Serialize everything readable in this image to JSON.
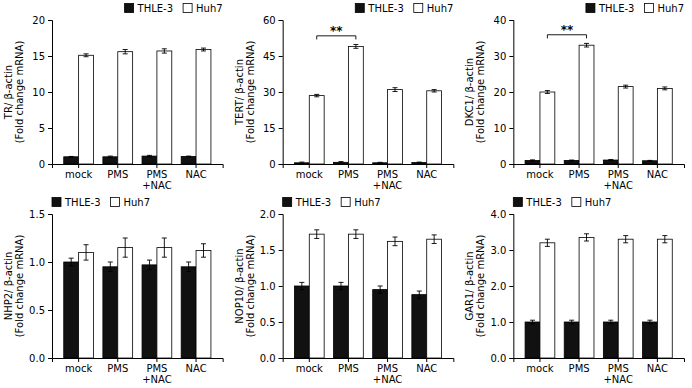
{
  "chart_data": [
    {
      "type": "bar",
      "ylabel": "TR/ β-actin\n(Fold change mRNA)",
      "categories": [
        "mock",
        "PMS",
        "PMS\n+NAC",
        "NAC"
      ],
      "ylim": [
        0,
        20
      ],
      "yticks": [
        0,
        5,
        10,
        15,
        20
      ],
      "grid": false,
      "legend": "upper right",
      "series": [
        {
          "name": "THLE-3",
          "color": "#111111",
          "values": [
            1.0,
            1.0,
            1.1,
            1.05
          ],
          "errors": [
            0.05,
            0.1,
            0.1,
            0.05
          ]
        },
        {
          "name": "Huh7",
          "color": "#ffffff",
          "values": [
            15.1,
            15.6,
            15.7,
            15.9
          ],
          "errors": [
            0.2,
            0.3,
            0.3,
            0.2
          ]
        }
      ]
    },
    {
      "type": "bar",
      "ylabel": "TERT/ β-actin\n(Fold change mRNA)",
      "categories": [
        "mock",
        "PMS",
        "PMS\n+NAC",
        "NAC"
      ],
      "ylim": [
        0,
        60
      ],
      "yticks": [
        0,
        15,
        30,
        45,
        60
      ],
      "grid": false,
      "legend": "upper right",
      "series": [
        {
          "name": "THLE-3",
          "color": "#111111",
          "values": [
            0.5,
            0.7,
            0.5,
            0.6
          ],
          "errors": [
            0.3,
            0.3,
            0.2,
            0.2
          ]
        },
        {
          "name": "Huh7",
          "color": "#ffffff",
          "values": [
            28.5,
            49.0,
            31.0,
            30.5
          ],
          "errors": [
            0.5,
            0.8,
            0.8,
            0.5
          ]
        }
      ],
      "annotations": [
        {
          "text": "**",
          "from": "mock",
          "to": "PMS",
          "series": "Huh7"
        }
      ]
    },
    {
      "type": "bar",
      "ylabel": "DKC1/ β-actin\n(Fold change mRNA)",
      "categories": [
        "mock",
        "PMS",
        "PMS\n+NAC",
        "NAC"
      ],
      "ylim": [
        0,
        40
      ],
      "yticks": [
        0,
        10,
        20,
        30,
        40
      ],
      "grid": false,
      "legend": "upper right",
      "series": [
        {
          "name": "THLE-3",
          "color": "#111111",
          "values": [
            1.0,
            1.0,
            1.1,
            0.9
          ],
          "errors": [
            0.15,
            0.1,
            0.15,
            0.1
          ]
        },
        {
          "name": "Huh7",
          "color": "#ffffff",
          "values": [
            20.0,
            33.0,
            21.5,
            21.0
          ],
          "errors": [
            0.4,
            0.5,
            0.4,
            0.4
          ]
        }
      ],
      "annotations": [
        {
          "text": "**",
          "from": "mock",
          "to": "PMS",
          "series": "Huh7"
        }
      ]
    },
    {
      "type": "bar",
      "ylabel": "NHP2/ β-actin\n(Fold change mRNA)",
      "categories": [
        "mock",
        "PMS",
        "PMS\n+NAC",
        "NAC"
      ],
      "ylim": [
        0,
        1.5
      ],
      "yticks": [
        {
          "value": 0.0,
          "label": "0.0"
        },
        0.5,
        {
          "value": 1.0,
          "label": "1.0"
        },
        1.5
      ],
      "grid": false,
      "legend": "upper left",
      "series": [
        {
          "name": "THLE-3",
          "color": "#111111",
          "values": [
            1.0,
            0.95,
            0.97,
            0.95
          ],
          "errors": [
            0.04,
            0.05,
            0.05,
            0.05
          ]
        },
        {
          "name": "Huh7",
          "color": "#ffffff",
          "values": [
            1.1,
            1.15,
            1.15,
            1.12
          ],
          "errors": [
            0.08,
            0.1,
            0.1,
            0.07
          ]
        }
      ]
    },
    {
      "type": "bar",
      "ylabel": "NOP10/ β-actin\n(Fold change mRNA)",
      "categories": [
        "mock",
        "PMS",
        "PMS\n+NAC",
        "NAC"
      ],
      "ylim": [
        0,
        2.0
      ],
      "yticks": [
        {
          "value": 0.0,
          "label": "0.0"
        },
        0.5,
        {
          "value": 1.0,
          "label": "1.0"
        },
        1.5,
        {
          "value": 2.0,
          "label": "2.0"
        }
      ],
      "grid": false,
      "legend": "upper left",
      "series": [
        {
          "name": "THLE-3",
          "color": "#111111",
          "values": [
            1.0,
            1.0,
            0.95,
            0.88
          ],
          "errors": [
            0.05,
            0.05,
            0.05,
            0.05
          ]
        },
        {
          "name": "Huh7",
          "color": "#ffffff",
          "values": [
            1.72,
            1.72,
            1.62,
            1.65
          ],
          "errors": [
            0.06,
            0.06,
            0.06,
            0.06
          ]
        }
      ]
    },
    {
      "type": "bar",
      "ylabel": "GAR1/ β-actin\n(Fold change mRNA)",
      "categories": [
        "mock",
        "PMS",
        "PMS\n+NAC",
        "NAC"
      ],
      "ylim": [
        0,
        4.0
      ],
      "yticks": [
        {
          "value": 0.0,
          "label": "0.0"
        },
        {
          "value": 1.0,
          "label": "1.0"
        },
        {
          "value": 2.0,
          "label": "2.0"
        },
        {
          "value": 3.0,
          "label": "3.0"
        },
        {
          "value": 4.0,
          "label": "4.0"
        }
      ],
      "grid": false,
      "legend": "upper left",
      "series": [
        {
          "name": "THLE-3",
          "color": "#111111",
          "values": [
            1.0,
            1.0,
            1.0,
            1.0
          ],
          "errors": [
            0.05,
            0.05,
            0.05,
            0.05
          ]
        },
        {
          "name": "Huh7",
          "color": "#ffffff",
          "values": [
            3.2,
            3.35,
            3.3,
            3.3
          ],
          "errors": [
            0.1,
            0.1,
            0.1,
            0.1
          ]
        }
      ]
    }
  ]
}
